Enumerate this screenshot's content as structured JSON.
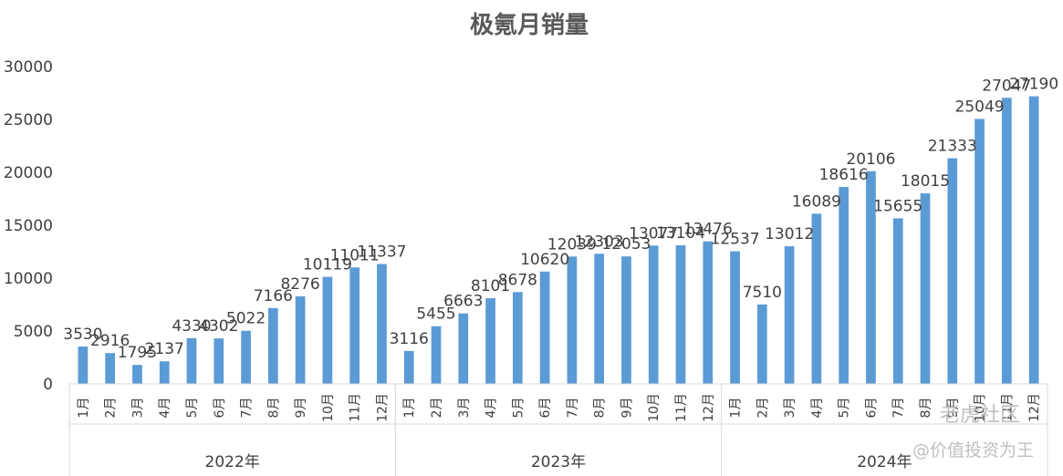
{
  "chart_data": {
    "type": "bar",
    "title": "极氪月销量",
    "ylim": [
      0,
      30000
    ],
    "yticks": [
      0,
      5000,
      10000,
      15000,
      20000,
      25000,
      30000
    ],
    "grid": false,
    "legend": "none",
    "bar_color": "#5b9bd5",
    "groups": [
      {
        "label": "2022年",
        "months": [
          "1月",
          "2月",
          "3月",
          "4月",
          "5月",
          "6月",
          "7月",
          "8月",
          "9月",
          "10月",
          "11月",
          "12月"
        ],
        "values": [
          3530,
          2916,
          1795,
          2137,
          4330,
          4302,
          5022,
          7166,
          8276,
          10119,
          11011,
          11337
        ]
      },
      {
        "label": "2023年",
        "months": [
          "1月",
          "2月",
          "3月",
          "4月",
          "5月",
          "6月",
          "7月",
          "8月",
          "9月",
          "10月",
          "11月",
          "12月"
        ],
        "values": [
          3116,
          5455,
          6663,
          8101,
          8678,
          10620,
          12039,
          12303,
          12053,
          13077,
          13104,
          13476
        ]
      },
      {
        "label": "2024年",
        "months": [
          "1月",
          "2月",
          "3月",
          "4月",
          "5月",
          "6月",
          "7月",
          "8月",
          "9月",
          "10月",
          "11月",
          "12月"
        ],
        "values": [
          12537,
          7510,
          13012,
          16089,
          18616,
          20106,
          15655,
          18015,
          21333,
          25049,
          27047,
          27190
        ]
      }
    ]
  },
  "watermark": {
    "line1": "老虎社区",
    "line2": "@价值投资为王"
  }
}
